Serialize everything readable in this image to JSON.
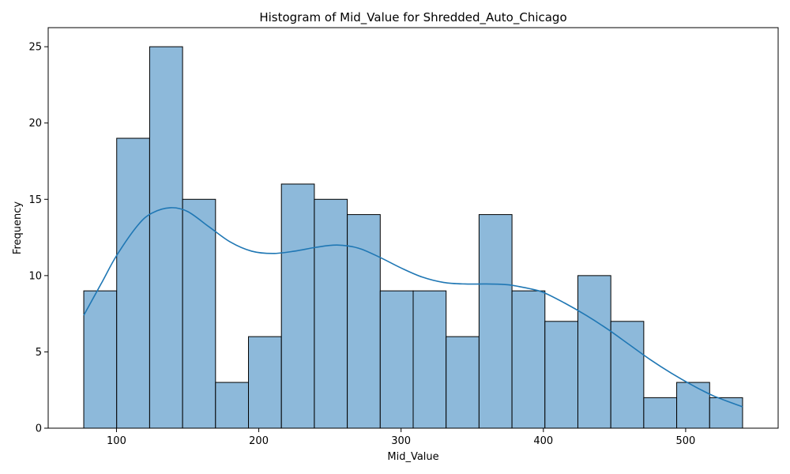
{
  "chart_data": {
    "type": "bar",
    "title": "Histogram of Mid_Value for Shredded_Auto_Chicago",
    "xlabel": "Mid_Value",
    "ylabel": "Frequency",
    "xlim": [
      52,
      565
    ],
    "ylim": [
      0,
      26.25
    ],
    "x_ticks": [
      100,
      200,
      300,
      400,
      500
    ],
    "y_ticks": [
      0,
      5,
      10,
      15,
      20,
      25
    ],
    "bins": {
      "edges": [
        77,
        100.15,
        123.3,
        146.45,
        169.6,
        192.75,
        215.9,
        239.05,
        262.2,
        285.35,
        308.5,
        331.65,
        354.8,
        377.95,
        401.1,
        424.25,
        447.4,
        470.55,
        493.7,
        516.85,
        540
      ],
      "counts": [
        9,
        19,
        25,
        15,
        3,
        6,
        16,
        15,
        14,
        9,
        9,
        6,
        14,
        9,
        7,
        10,
        7,
        2,
        3,
        2
      ]
    },
    "kde": {
      "x": [
        77,
        90,
        100,
        115,
        125,
        138,
        150,
        165,
        180,
        195,
        210,
        225,
        240,
        255,
        270,
        285,
        300,
        315,
        330,
        345,
        360,
        375,
        390,
        400,
        415,
        430,
        445,
        460,
        475,
        490,
        505,
        520,
        540
      ],
      "y": [
        7.4,
        9.6,
        11.3,
        13.3,
        14.1,
        14.45,
        14.2,
        13.2,
        12.2,
        11.6,
        11.45,
        11.6,
        11.85,
        12.0,
        11.8,
        11.2,
        10.5,
        9.9,
        9.55,
        9.45,
        9.45,
        9.4,
        9.15,
        8.9,
        8.2,
        7.4,
        6.5,
        5.5,
        4.5,
        3.6,
        2.8,
        2.1,
        1.4
      ]
    },
    "colors": {
      "bar_fill": "#8db9da",
      "bar_edge": "#000000",
      "kde_line": "#1f77b4"
    },
    "grid": false,
    "legend": "none"
  }
}
